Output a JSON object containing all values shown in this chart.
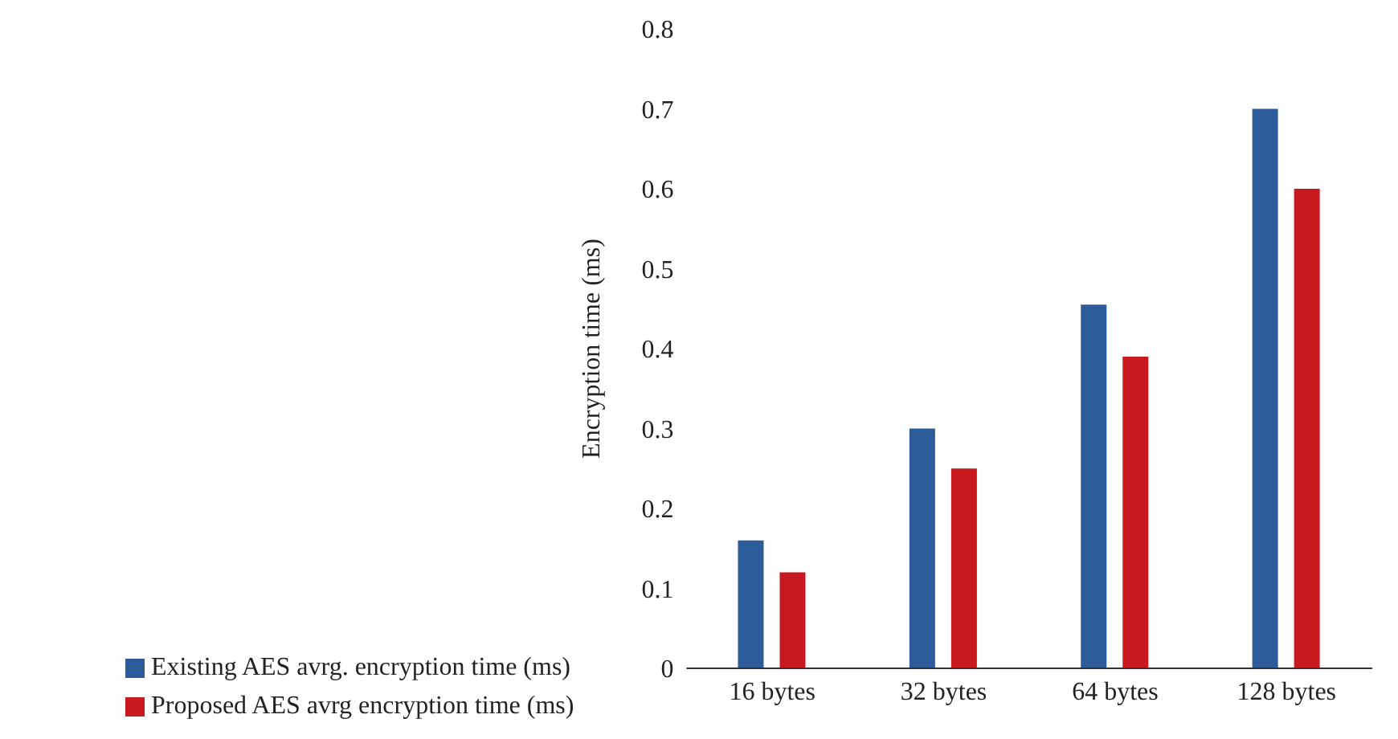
{
  "chart_data": {
    "type": "bar",
    "ylabel": "Encryption time (ms)",
    "categories": [
      "16 bytes",
      "32 bytes",
      "64 bytes",
      "128 bytes"
    ],
    "series": [
      {
        "name": "Existing AES avrg. encryption time (ms)",
        "color": "#2e5b99",
        "values": [
          0.16,
          0.3,
          0.455,
          0.7
        ]
      },
      {
        "name": "Proposed AES avrg encryption time (ms)",
        "color": "#c8191f",
        "values": [
          0.12,
          0.25,
          0.39,
          0.6
        ]
      }
    ],
    "ylim": [
      0,
      0.8
    ],
    "yticks": [
      0,
      0.1,
      0.2,
      0.3,
      0.4,
      0.5,
      0.6,
      0.7,
      0.8
    ],
    "grid": false,
    "legend": "bottom left"
  }
}
